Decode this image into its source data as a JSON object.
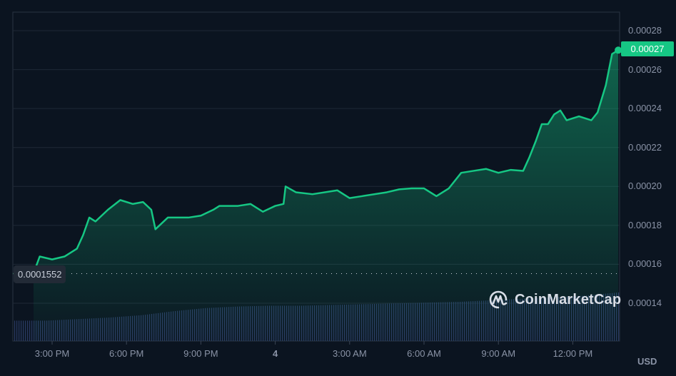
{
  "chart_data": {
    "type": "line",
    "title": "",
    "xlabel": "",
    "ylabel": "USD",
    "currency": "USD",
    "ylim": [
      0.00012,
      0.00029
    ],
    "grid": true,
    "legend": "none",
    "y_ticks": [
      "0.00028",
      "0.00026",
      "0.00024",
      "0.00022",
      "0.00020",
      "0.00018",
      "0.00016",
      "0.00014"
    ],
    "x_ticks": [
      "3:00 PM",
      "6:00 PM",
      "9:00 PM",
      "4",
      "3:00 AM",
      "6:00 AM",
      "9:00 AM",
      "12:00 PM"
    ],
    "current_price": "0.00027",
    "baseline_price": "0.0001552",
    "series": [
      {
        "name": "Price",
        "color": "#16c784",
        "points": [
          [
            "13:30",
            0.0001552
          ],
          [
            "14:15",
            0.0001553
          ],
          [
            "14:30",
            0.000164
          ],
          [
            "15:00",
            0.0001625
          ],
          [
            "15:30",
            0.000164
          ],
          [
            "16:00",
            0.000168
          ],
          [
            "16:15",
            0.000175
          ],
          [
            "16:30",
            0.000184
          ],
          [
            "16:45",
            0.000182
          ],
          [
            "17:15",
            0.000188
          ],
          [
            "17:45",
            0.000193
          ],
          [
            "18:15",
            0.000191
          ],
          [
            "18:40",
            0.000192
          ],
          [
            "19:00",
            0.000188
          ],
          [
            "19:10",
            0.000178
          ],
          [
            "19:40",
            0.000184
          ],
          [
            "20:30",
            0.000184
          ],
          [
            "21:00",
            0.000185
          ],
          [
            "21:30",
            0.000188
          ],
          [
            "21:45",
            0.00019
          ],
          [
            "22:30",
            0.00019
          ],
          [
            "23:00",
            0.000191
          ],
          [
            "23:30",
            0.000187
          ],
          [
            "00:00",
            0.00019
          ],
          [
            "00:20",
            0.000191
          ],
          [
            "00:25",
            0.0002
          ],
          [
            "00:50",
            0.000197
          ],
          [
            "01:30",
            0.000196
          ],
          [
            "02:30",
            0.000198
          ],
          [
            "03:00",
            0.000194
          ],
          [
            "03:30",
            0.000195
          ],
          [
            "04:30",
            0.000197
          ],
          [
            "05:00",
            0.0001985
          ],
          [
            "05:30",
            0.000199
          ],
          [
            "06:00",
            0.000199
          ],
          [
            "06:30",
            0.000195
          ],
          [
            "07:00",
            0.000199
          ],
          [
            "07:30",
            0.000207
          ],
          [
            "08:00",
            0.000208
          ],
          [
            "08:30",
            0.000209
          ],
          [
            "09:00",
            0.000207
          ],
          [
            "09:30",
            0.0002085
          ],
          [
            "10:00",
            0.000208
          ],
          [
            "10:15",
            0.000215
          ],
          [
            "10:30",
            0.000223
          ],
          [
            "10:45",
            0.000232
          ],
          [
            "11:00",
            0.000232
          ],
          [
            "11:15",
            0.000237
          ],
          [
            "11:30",
            0.000239
          ],
          [
            "11:45",
            0.000234
          ],
          [
            "12:15",
            0.000236
          ],
          [
            "12:45",
            0.000234
          ],
          [
            "13:00",
            0.000238
          ],
          [
            "13:20",
            0.000252
          ],
          [
            "13:35",
            0.000268
          ],
          [
            "13:50",
            0.00027
          ]
        ]
      }
    ],
    "volume": {
      "type": "bar",
      "trend": "gradually increasing from left to right",
      "relative_heights": [
        0.26,
        0.26,
        0.28,
        0.3,
        0.33,
        0.38,
        0.42,
        0.44,
        0.45,
        0.45,
        0.46,
        0.47,
        0.48,
        0.49,
        0.5,
        0.52,
        0.54,
        0.56,
        0.58,
        0.62
      ]
    }
  },
  "axis": {
    "y_labels": [
      "0.00028",
      "0.00026",
      "0.00024",
      "0.00022",
      "0.00020",
      "0.00018",
      "0.00016",
      "0.00014"
    ],
    "x_labels": [
      "3:00 PM",
      "6:00 PM",
      "9:00 PM",
      "4",
      "3:00 AM",
      "6:00 AM",
      "9:00 AM",
      "12:00 PM"
    ],
    "currency": "USD"
  },
  "badges": {
    "current_price": "0.00027",
    "baseline_price": "0.0001552"
  },
  "watermark": {
    "brand": "CoinMarketCap",
    "icon": "coinmarketcap-logo-icon"
  },
  "colors": {
    "background": "#0b1420",
    "line": "#16c784",
    "grid": "#1f2836",
    "volume": "#2a3a63",
    "axis_text": "#8a93a6"
  }
}
